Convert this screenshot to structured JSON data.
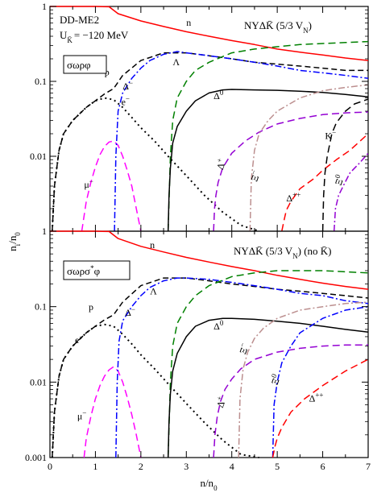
{
  "chart_data": [
    {
      "type": "line",
      "panel": "top",
      "yscale": "log",
      "xlim": [
        0,
        7
      ],
      "ylim": [
        0.001,
        1
      ],
      "annotations": {
        "model": "DD-ME2",
        "potential": "U",
        "potential_sub": "K̄",
        "potential_value": "= −120 MeV",
        "composition": "NYΔK̄ (5/3 V",
        "composition_sub": "N",
        "composition_tail": ")",
        "mesons": "σωρφ"
      },
      "series": [
        {
          "name": "n",
          "label": "n",
          "color": "#ff0000",
          "dash": "",
          "x": [
            0,
            0.5,
            1,
            1.3,
            1.5,
            2,
            2.5,
            3,
            3.5,
            4,
            4.5,
            5,
            5.5,
            6,
            6.5,
            7
          ],
          "y": [
            1,
            1,
            1,
            0.99,
            0.8,
            0.64,
            0.54,
            0.46,
            0.4,
            0.35,
            0.31,
            0.27,
            0.245,
            0.225,
            0.205,
            0.19
          ]
        },
        {
          "name": "p",
          "label": "p",
          "color": "#000000",
          "dash": "7,4",
          "x": [
            0.05,
            0.1,
            0.2,
            0.3,
            0.5,
            0.8,
            1,
            1.2,
            1.4,
            1.6,
            2,
            2.5,
            3,
            3.5,
            4,
            4.5,
            5,
            5.5,
            6,
            6.5,
            7
          ],
          "y": [
            0.001,
            0.004,
            0.012,
            0.02,
            0.03,
            0.045,
            0.055,
            0.068,
            0.08,
            0.12,
            0.19,
            0.24,
            0.24,
            0.22,
            0.2,
            0.18,
            0.17,
            0.16,
            0.15,
            0.14,
            0.14
          ]
        },
        {
          "name": "e-",
          "label": "e",
          "label_sup": "−",
          "color": "#000000",
          "dash": "2,4",
          "x": [
            0.05,
            0.1,
            0.2,
            0.3,
            0.5,
            0.8,
            1,
            1.2,
            1.4,
            1.6,
            1.8,
            2,
            2.3,
            2.6,
            3,
            3.4,
            3.8,
            4.2,
            4.6
          ],
          "y": [
            0.001,
            0.004,
            0.012,
            0.02,
            0.03,
            0.045,
            0.055,
            0.06,
            0.057,
            0.045,
            0.033,
            0.024,
            0.016,
            0.01,
            0.0055,
            0.003,
            0.0018,
            0.0012,
            0.001
          ]
        },
        {
          "name": "mu-",
          "label": "μ",
          "label_sup": "−",
          "color": "#ff00ff",
          "dash": "9,5",
          "x": [
            0.7,
            0.8,
            0.9,
            1,
            1.1,
            1.2,
            1.3,
            1.4,
            1.5,
            1.6,
            1.7,
            1.8,
            1.9,
            2
          ],
          "y": [
            0.001,
            0.0025,
            0.0045,
            0.0072,
            0.0105,
            0.0135,
            0.0155,
            0.016,
            0.014,
            0.01,
            0.0065,
            0.004,
            0.002,
            0.001
          ]
        },
        {
          "name": "Delta-",
          "label": "Δ",
          "label_sup": "−",
          "color": "#0000ff",
          "dash": "8,3,2,3",
          "x": [
            1.42,
            1.45,
            1.5,
            1.6,
            1.8,
            2,
            2.2,
            2.5,
            2.8,
            3,
            3.5,
            4,
            4.5,
            5,
            5.5,
            6,
            6.5,
            7
          ],
          "y": [
            0.001,
            0.01,
            0.04,
            0.07,
            0.11,
            0.15,
            0.19,
            0.23,
            0.25,
            0.24,
            0.22,
            0.2,
            0.18,
            0.16,
            0.14,
            0.13,
            0.12,
            0.11
          ]
        },
        {
          "name": "Lambda",
          "label": "Λ",
          "color": "#008000",
          "dash": "9,5",
          "x": [
            2.6,
            2.65,
            2.7,
            2.8,
            3,
            3.2,
            3.5,
            4,
            4.5,
            5,
            5.5,
            6,
            6.5,
            7
          ],
          "y": [
            0.001,
            0.01,
            0.03,
            0.06,
            0.1,
            0.14,
            0.18,
            0.24,
            0.27,
            0.29,
            0.31,
            0.32,
            0.33,
            0.34
          ]
        },
        {
          "name": "Delta0",
          "label": "Δ",
          "label_sup": "0",
          "color": "#000000",
          "dash": "",
          "x": [
            2.6,
            2.62,
            2.65,
            2.7,
            2.8,
            3,
            3.2,
            3.5,
            3.8,
            4,
            4.5,
            5,
            5.5,
            6,
            6.5,
            7
          ],
          "y": [
            0.001,
            0.003,
            0.007,
            0.015,
            0.025,
            0.04,
            0.055,
            0.07,
            0.077,
            0.078,
            0.077,
            0.076,
            0.074,
            0.071,
            0.067,
            0.062
          ]
        },
        {
          "name": "Delta+",
          "label": "Δ",
          "label_sup": "+",
          "color": "#9400d3",
          "dash": "9,5",
          "x": [
            3.6,
            3.62,
            3.65,
            3.7,
            3.8,
            4,
            4.3,
            4.6,
            5,
            5.5,
            6,
            6.5,
            7
          ],
          "y": [
            0.001,
            0.002,
            0.003,
            0.0045,
            0.007,
            0.011,
            0.016,
            0.021,
            0.027,
            0.032,
            0.036,
            0.038,
            0.039
          ]
        },
        {
          "name": "Xi-",
          "label": "Ξ",
          "label_sup": "−",
          "color": "#bc8f8f",
          "dash": "8,3,2,3",
          "x": [
            4.4,
            4.43,
            4.5,
            4.6,
            4.8,
            5,
            5.5,
            6,
            6.5,
            7
          ],
          "y": [
            0.001,
            0.005,
            0.012,
            0.02,
            0.03,
            0.04,
            0.06,
            0.075,
            0.083,
            0.09
          ]
        },
        {
          "name": "Delta++",
          "label": "Δ",
          "label_sup": "++",
          "color": "#ff0000",
          "dash": "9,5",
          "x": [
            5.1,
            5.15,
            5.2,
            5.3,
            5.5,
            5.8,
            6,
            6.3,
            6.6,
            7
          ],
          "y": [
            0.001,
            0.0014,
            0.0019,
            0.0025,
            0.0037,
            0.005,
            0.0065,
            0.009,
            0.012,
            0.02
          ]
        },
        {
          "name": "K-",
          "label": "K",
          "label_sup": "−",
          "color": "#000000",
          "dash": "9,5",
          "x": [
            6.0,
            6.02,
            6.05,
            6.1,
            6.2,
            6.3,
            6.5,
            6.7,
            6.9,
            7
          ],
          "y": [
            0.001,
            0.003,
            0.006,
            0.01,
            0.02,
            0.028,
            0.04,
            0.05,
            0.055,
            0.058
          ]
        },
        {
          "name": "Xi0",
          "label": "Ξ",
          "label_sup": "0",
          "color": "#9400d3",
          "dash": "8,3,2,3",
          "x": [
            6.25,
            6.28,
            6.35,
            6.45,
            6.6,
            6.8,
            7
          ],
          "y": [
            0.001,
            0.002,
            0.003,
            0.004,
            0.006,
            0.008,
            0.011
          ]
        }
      ],
      "label_positions_data": {
        "n": [
          3.0,
          0.55
        ],
        "p": [
          1.2,
          0.12
        ],
        "e-": [
          1.57,
          0.048
        ],
        "mu-": [
          0.75,
          0.0038
        ],
        "Delta-": [
          1.6,
          0.078
        ],
        "Lambda": [
          2.7,
          0.165
        ],
        "Delta0": [
          3.6,
          0.058
        ],
        "Delta+": [
          3.8,
          0.0065
        ],
        "Xi-": [
          4.55,
          0.0045
        ],
        "Delta++": [
          5.2,
          0.0025
        ],
        "K-": [
          6.05,
          0.017
        ],
        "Xi0": [
          6.4,
          0.004
        ]
      }
    },
    {
      "type": "line",
      "panel": "bottom",
      "yscale": "log",
      "xlim": [
        0,
        7
      ],
      "ylim": [
        0.001,
        1
      ],
      "annotations": {
        "composition": "NYΔK̄ (5/3 V",
        "composition_sub": "N",
        "composition_tail": ") (no K̄)",
        "mesons": "σωρσ",
        "mesons_sup": "*",
        "mesons_tail": "φ"
      },
      "series": [
        {
          "name": "n",
          "label": "n",
          "color": "#ff0000",
          "dash": "",
          "x": [
            0,
            0.5,
            1,
            1.3,
            1.5,
            2,
            2.5,
            3,
            3.5,
            4,
            4.5,
            5,
            5.5,
            6,
            6.5,
            7
          ],
          "y": [
            1,
            1,
            1,
            0.99,
            0.8,
            0.63,
            0.53,
            0.45,
            0.39,
            0.34,
            0.3,
            0.26,
            0.23,
            0.205,
            0.185,
            0.17
          ]
        },
        {
          "name": "p",
          "label": "p",
          "color": "#000000",
          "dash": "7,4",
          "x": [
            0.05,
            0.1,
            0.2,
            0.3,
            0.5,
            0.8,
            1,
            1.2,
            1.4,
            1.6,
            2,
            2.5,
            3,
            3.5,
            4,
            4.5,
            5,
            5.5,
            6,
            6.5,
            7
          ],
          "y": [
            0.001,
            0.004,
            0.012,
            0.02,
            0.03,
            0.045,
            0.055,
            0.067,
            0.078,
            0.115,
            0.19,
            0.24,
            0.24,
            0.22,
            0.2,
            0.185,
            0.17,
            0.16,
            0.15,
            0.14,
            0.13
          ]
        },
        {
          "name": "e-",
          "label": "e",
          "label_sup": "−",
          "color": "#000000",
          "dash": "2,4",
          "x": [
            0.05,
            0.1,
            0.2,
            0.3,
            0.5,
            0.8,
            1,
            1.2,
            1.4,
            1.6,
            1.8,
            2,
            2.3,
            2.6,
            3,
            3.4,
            3.8,
            4.2,
            4.6
          ],
          "y": [
            0.001,
            0.004,
            0.012,
            0.02,
            0.03,
            0.045,
            0.055,
            0.058,
            0.055,
            0.043,
            0.032,
            0.023,
            0.015,
            0.0095,
            0.0052,
            0.0029,
            0.0017,
            0.0011,
            0.001
          ]
        },
        {
          "name": "mu-",
          "label": "μ",
          "label_sup": "−",
          "color": "#ff00ff",
          "dash": "9,5",
          "x": [
            0.75,
            0.8,
            0.9,
            1,
            1.1,
            1.2,
            1.3,
            1.4,
            1.5,
            1.6,
            1.7,
            1.8,
            1.9,
            2
          ],
          "y": [
            0.001,
            0.0018,
            0.0035,
            0.006,
            0.009,
            0.012,
            0.0145,
            0.016,
            0.014,
            0.01,
            0.0063,
            0.0037,
            0.002,
            0.001
          ]
        },
        {
          "name": "Delta-",
          "label": "Δ",
          "label_sup": "−",
          "color": "#0000ff",
          "dash": "8,3,2,3",
          "x": [
            1.45,
            1.48,
            1.52,
            1.6,
            1.8,
            2,
            2.2,
            2.5,
            2.8,
            3,
            3.5,
            4,
            4.5,
            5,
            5.5,
            6,
            6.5,
            7
          ],
          "y": [
            0.001,
            0.01,
            0.035,
            0.065,
            0.1,
            0.14,
            0.18,
            0.22,
            0.24,
            0.24,
            0.23,
            0.21,
            0.19,
            0.17,
            0.15,
            0.14,
            0.12,
            0.11
          ]
        },
        {
          "name": "Lambda",
          "label": "Λ",
          "color": "#008000",
          "dash": "9,5",
          "x": [
            2.6,
            2.65,
            2.7,
            2.8,
            3,
            3.2,
            3.5,
            4,
            4.5,
            5,
            5.5,
            6,
            6.5,
            7
          ],
          "y": [
            0.001,
            0.01,
            0.03,
            0.06,
            0.1,
            0.14,
            0.19,
            0.25,
            0.28,
            0.3,
            0.3,
            0.3,
            0.29,
            0.28
          ]
        },
        {
          "name": "Delta0",
          "label": "Δ",
          "label_sup": "0",
          "color": "#000000",
          "dash": "",
          "x": [
            2.6,
            2.62,
            2.65,
            2.7,
            2.8,
            3,
            3.2,
            3.5,
            3.8,
            4,
            4.5,
            5,
            5.5,
            6,
            6.5,
            7
          ],
          "y": [
            0.001,
            0.003,
            0.007,
            0.014,
            0.024,
            0.04,
            0.055,
            0.066,
            0.07,
            0.07,
            0.068,
            0.064,
            0.06,
            0.055,
            0.05,
            0.046
          ]
        },
        {
          "name": "Delta+",
          "label": "Δ",
          "label_sup": "+",
          "color": "#9400d3",
          "dash": "9,5",
          "x": [
            3.6,
            3.63,
            3.68,
            3.75,
            3.85,
            4,
            4.2,
            4.5,
            5,
            5.5,
            6,
            6.5,
            7
          ],
          "y": [
            0.001,
            0.002,
            0.0035,
            0.0055,
            0.008,
            0.011,
            0.015,
            0.02,
            0.025,
            0.028,
            0.03,
            0.031,
            0.031
          ]
        },
        {
          "name": "Xi-",
          "label": "Ξ",
          "label_sup": "−",
          "color": "#bc8f8f",
          "dash": "8,3,2,3",
          "x": [
            4.15,
            4.18,
            4.25,
            4.35,
            4.5,
            4.7,
            5,
            5.5,
            6,
            6.5,
            7
          ],
          "y": [
            0.001,
            0.006,
            0.015,
            0.025,
            0.038,
            0.052,
            0.07,
            0.09,
            0.1,
            0.11,
            0.115
          ]
        },
        {
          "name": "Xi0",
          "label": "Ξ",
          "label_sup": "0",
          "color": "#0000ff",
          "dash": "8,3,2,3",
          "x": [
            4.9,
            4.93,
            5,
            5.1,
            5.3,
            5.5,
            6,
            6.5,
            7
          ],
          "y": [
            0.001,
            0.005,
            0.01,
            0.018,
            0.03,
            0.045,
            0.07,
            0.09,
            0.1
          ]
        },
        {
          "name": "Delta++",
          "label": "Δ",
          "label_sup": "++",
          "color": "#ff0000",
          "dash": "9,5",
          "x": [
            4.9,
            4.95,
            5,
            5.1,
            5.3,
            5.6,
            6,
            6.5,
            7
          ],
          "y": [
            0.001,
            0.0014,
            0.0018,
            0.0025,
            0.004,
            0.006,
            0.009,
            0.014,
            0.02
          ]
        }
      ],
      "label_positions_data": {
        "n": [
          2.2,
          0.6
        ],
        "p": [
          0.85,
          0.09
        ],
        "e-": [
          0.55,
          0.033
        ],
        "mu-": [
          0.6,
          0.0032
        ],
        "Delta-": [
          1.65,
          0.076
        ],
        "Lambda": [
          2.2,
          0.145
        ],
        "Delta0": [
          3.6,
          0.05
        ],
        "Delta+": [
          3.8,
          0.0045
        ],
        "Xi-": [
          4.3,
          0.023
        ],
        "Xi0": [
          5.0,
          0.009
        ],
        "Delta++": [
          5.7,
          0.0055
        ]
      }
    }
  ],
  "axes": {
    "ylabel": "n",
    "ylabel_sub1": "i",
    "ylabel_mid": "/n",
    "ylabel_sub2": "0",
    "xlabel": "n/n",
    "xlabel_sub": "0",
    "x_ticks": [
      "0",
      "1",
      "2",
      "3",
      "4",
      "5",
      "6",
      "7"
    ],
    "y_ticks_top": [
      "1",
      "0.1",
      "0.01"
    ],
    "y_ticks_bottom": [
      "1",
      "0.1",
      "0.01",
      "0.001"
    ]
  }
}
